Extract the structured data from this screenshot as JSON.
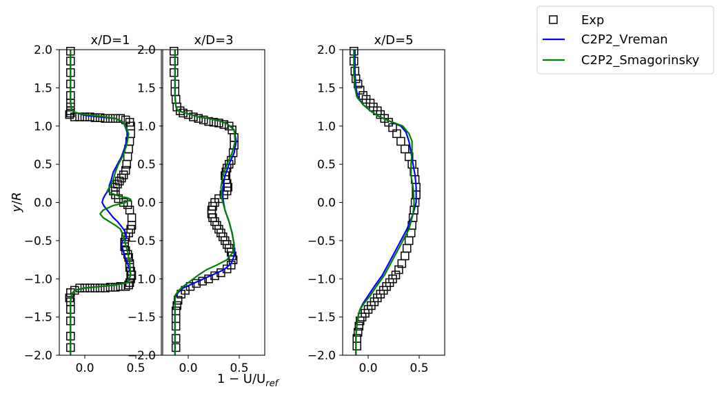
{
  "chart_data": {
    "type": "line",
    "ylabel": "y/R",
    "xlabel": "1 - U/U_ref",
    "xlabel_parts": {
      "main": "1 − U/U",
      "sub": "ref"
    },
    "ylabel_parts": {
      "var": "y",
      "sep": "/",
      "den": "R"
    },
    "xlim": [
      -0.25,
      0.75
    ],
    "ylim": [
      -2.0,
      2.0
    ],
    "xticks": [
      0.0,
      0.5
    ],
    "xtick_labels": [
      "0.0",
      "0.5"
    ],
    "yticks": [
      2.0,
      1.5,
      1.0,
      0.5,
      0.0,
      -0.5,
      -1.0,
      -1.5,
      -2.0
    ],
    "ytick_labels": [
      "2.0",
      "1.5",
      "1.0",
      "0.5",
      "0.0",
      "−0.5",
      "−1.0",
      "−1.5",
      "−2.0"
    ],
    "legend": {
      "location": "upper-right-outside",
      "entries": [
        {
          "name": "Exp",
          "marker": "square",
          "color": "#000000"
        },
        {
          "name": "C2P2_Vreman",
          "marker": "line",
          "color": "#0000ff"
        },
        {
          "name": "C2P2_Smagorinsky",
          "marker": "line",
          "color": "#008000"
        }
      ]
    },
    "panels": [
      {
        "title": "x/D=1",
        "series": [
          {
            "name": "Exp",
            "style": "markers",
            "color": "#000000",
            "x": [
              -0.14,
              -0.14,
              -0.14,
              -0.14,
              -0.14,
              -0.14,
              -0.14,
              -0.14,
              -0.14,
              -0.15,
              -0.1,
              -0.05,
              0.0,
              0.05,
              0.1,
              0.15,
              0.2,
              0.25,
              0.3,
              0.35,
              0.4,
              0.44,
              0.45,
              0.45,
              0.44,
              0.43,
              0.42,
              0.41,
              0.4,
              0.38,
              0.36,
              0.34,
              0.32,
              0.3,
              0.28,
              0.3,
              0.33,
              0.38,
              0.42,
              0.44,
              0.46,
              0.46,
              0.45,
              0.43,
              0.4,
              0.39,
              0.39,
              0.4,
              0.42,
              0.43,
              0.44,
              0.44,
              0.45,
              0.46,
              0.45,
              0.44,
              0.43,
              0.4,
              0.35,
              0.3,
              0.25,
              0.2,
              0.15,
              0.1,
              0.05,
              0.0,
              -0.05,
              -0.1,
              -0.14,
              -0.15,
              -0.14,
              -0.14,
              -0.14,
              -0.14,
              -0.14
            ],
            "y": [
              1.98,
              1.85,
              1.7,
              1.55,
              1.4,
              1.3,
              1.25,
              1.2,
              1.17,
              1.15,
              1.12,
              1.12,
              1.12,
              1.12,
              1.11,
              1.11,
              1.1,
              1.1,
              1.1,
              1.1,
              1.08,
              1.05,
              1.0,
              0.9,
              0.8,
              0.7,
              0.6,
              0.5,
              0.42,
              0.36,
              0.32,
              0.28,
              0.24,
              0.2,
              0.15,
              0.1,
              0.05,
              0.0,
              -0.03,
              -0.1,
              -0.2,
              -0.3,
              -0.35,
              -0.4,
              -0.45,
              -0.52,
              -0.58,
              -0.63,
              -0.68,
              -0.72,
              -0.8,
              -0.85,
              -0.9,
              -0.95,
              -1.0,
              -1.05,
              -1.08,
              -1.1,
              -1.1,
              -1.11,
              -1.11,
              -1.12,
              -1.12,
              -1.12,
              -1.12,
              -1.12,
              -1.12,
              -1.15,
              -1.18,
              -1.25,
              -1.3,
              -1.4,
              -1.55,
              -1.75,
              -1.9
            ]
          },
          {
            "name": "C2P2_Vreman",
            "style": "line",
            "color": "#0000ff",
            "x": [
              -0.14,
              -0.14,
              -0.14,
              -0.13,
              -0.1,
              0.0,
              0.15,
              0.3,
              0.38,
              0.42,
              0.4,
              0.36,
              0.32,
              0.28,
              0.26,
              0.24,
              0.24,
              0.22,
              0.2,
              0.18,
              0.17,
              0.19,
              0.22,
              0.25,
              0.28,
              0.32,
              0.35,
              0.38,
              0.4,
              0.41,
              0.4,
              0.37,
              0.36,
              0.37,
              0.39,
              0.42,
              0.45,
              0.42,
              0.3,
              0.15,
              0.0,
              -0.1,
              -0.13,
              -0.14,
              -0.14,
              -0.14
            ],
            "y": [
              2.0,
              1.6,
              1.3,
              1.22,
              1.18,
              1.14,
              1.12,
              1.1,
              1.05,
              0.9,
              0.75,
              0.6,
              0.5,
              0.4,
              0.3,
              0.22,
              0.18,
              0.14,
              0.1,
              0.05,
              0.0,
              -0.05,
              -0.1,
              -0.15,
              -0.2,
              -0.25,
              -0.3,
              -0.35,
              -0.4,
              -0.45,
              -0.48,
              -0.5,
              -0.55,
              -0.6,
              -0.7,
              -0.8,
              -0.95,
              -1.05,
              -1.08,
              -1.1,
              -1.12,
              -1.15,
              -1.2,
              -1.3,
              -1.6,
              -2.0
            ]
          },
          {
            "name": "C2P2_Smagorinsky",
            "style": "line",
            "color": "#008000",
            "x": [
              -0.14,
              -0.14,
              -0.14,
              -0.13,
              -0.1,
              0.0,
              0.15,
              0.3,
              0.38,
              0.43,
              0.41,
              0.37,
              0.33,
              0.3,
              0.28,
              0.25,
              0.22,
              0.26,
              0.34,
              0.42,
              0.45,
              0.4,
              0.28,
              0.18,
              0.15,
              0.18,
              0.24,
              0.3,
              0.35,
              0.38,
              0.4,
              0.42,
              0.44,
              0.45,
              0.42,
              0.3,
              0.15,
              0.0,
              -0.1,
              -0.13,
              -0.14,
              -0.14,
              -0.14
            ],
            "y": [
              2.0,
              1.6,
              1.3,
              1.22,
              1.18,
              1.15,
              1.13,
              1.1,
              1.05,
              0.9,
              0.75,
              0.6,
              0.5,
              0.4,
              0.3,
              0.22,
              0.15,
              0.12,
              0.08,
              0.06,
              0.04,
              0.0,
              -0.04,
              -0.1,
              -0.15,
              -0.2,
              -0.25,
              -0.3,
              -0.35,
              -0.45,
              -0.55,
              -0.65,
              -0.8,
              -0.95,
              -1.05,
              -1.08,
              -1.1,
              -1.12,
              -1.15,
              -1.2,
              -1.3,
              -1.6,
              -2.0
            ]
          }
        ]
      },
      {
        "title": "x/D=3",
        "series": [
          {
            "name": "Exp",
            "style": "markers",
            "color": "#000000",
            "x": [
              -0.14,
              -0.14,
              -0.14,
              -0.13,
              -0.13,
              -0.12,
              -0.11,
              -0.08,
              -0.05,
              0.0,
              0.05,
              0.1,
              0.15,
              0.2,
              0.25,
              0.3,
              0.35,
              0.4,
              0.43,
              0.45,
              0.45,
              0.44,
              0.42,
              0.4,
              0.38,
              0.37,
              0.36,
              0.37,
              0.38,
              0.39,
              0.38,
              0.35,
              0.3,
              0.26,
              0.24,
              0.23,
              0.23,
              0.24,
              0.26,
              0.28,
              0.3,
              0.32,
              0.34,
              0.36,
              0.38,
              0.4,
              0.42,
              0.43,
              0.44,
              0.42,
              0.38,
              0.32,
              0.26,
              0.2,
              0.14,
              0.08,
              0.02,
              -0.03,
              -0.07,
              -0.1,
              -0.11,
              -0.12,
              -0.12,
              -0.12,
              -0.12,
              -0.12
            ],
            "y": [
              1.98,
              1.85,
              1.7,
              1.55,
              1.45,
              1.35,
              1.25,
              1.2,
              1.17,
              1.15,
              1.12,
              1.1,
              1.08,
              1.06,
              1.05,
              1.04,
              1.02,
              1.0,
              0.95,
              0.85,
              0.75,
              0.65,
              0.55,
              0.5,
              0.45,
              0.4,
              0.35,
              0.3,
              0.25,
              0.2,
              0.15,
              0.1,
              0.05,
              0.0,
              -0.05,
              -0.1,
              -0.15,
              -0.2,
              -0.25,
              -0.3,
              -0.35,
              -0.4,
              -0.45,
              -0.5,
              -0.55,
              -0.6,
              -0.65,
              -0.7,
              -0.75,
              -0.82,
              -0.87,
              -0.92,
              -0.96,
              -1.0,
              -1.03,
              -1.06,
              -1.1,
              -1.15,
              -1.2,
              -1.28,
              -1.35,
              -1.42,
              -1.52,
              -1.62,
              -1.78,
              -1.9
            ]
          },
          {
            "name": "C2P2_Vreman",
            "style": "line",
            "color": "#0000ff",
            "x": [
              -0.13,
              -0.13,
              -0.13,
              -0.12,
              -0.1,
              0.0,
              0.1,
              0.2,
              0.3,
              0.38,
              0.45,
              0.47,
              0.45,
              0.4,
              0.36,
              0.34,
              0.34,
              0.36,
              0.4,
              0.43,
              0.45,
              0.45,
              0.42,
              0.35,
              0.25,
              0.15,
              0.05,
              -0.05,
              -0.1,
              -0.13,
              -0.13,
              -0.13
            ],
            "y": [
              2.0,
              1.6,
              1.4,
              1.25,
              1.2,
              1.16,
              1.12,
              1.1,
              1.07,
              1.03,
              0.95,
              0.8,
              0.65,
              0.5,
              0.35,
              0.2,
              0.05,
              -0.1,
              -0.25,
              -0.4,
              -0.55,
              -0.7,
              -0.8,
              -0.88,
              -0.94,
              -1.0,
              -1.06,
              -1.12,
              -1.18,
              -1.25,
              -1.6,
              -2.0
            ]
          },
          {
            "name": "C2P2_Smagorinsky",
            "style": "line",
            "color": "#008000",
            "x": [
              -0.13,
              -0.13,
              -0.13,
              -0.12,
              -0.1,
              0.0,
              0.1,
              0.2,
              0.3,
              0.38,
              0.45,
              0.46,
              0.43,
              0.38,
              0.34,
              0.32,
              0.33,
              0.36,
              0.4,
              0.43,
              0.45,
              0.44,
              0.38,
              0.28,
              0.18,
              0.1,
              0.03,
              -0.05,
              -0.1,
              -0.13,
              -0.13,
              -0.13
            ],
            "y": [
              2.0,
              1.6,
              1.4,
              1.25,
              1.2,
              1.16,
              1.12,
              1.1,
              1.07,
              1.03,
              0.95,
              0.8,
              0.65,
              0.5,
              0.35,
              0.2,
              0.05,
              -0.1,
              -0.25,
              -0.4,
              -0.55,
              -0.65,
              -0.75,
              -0.82,
              -0.88,
              -0.95,
              -1.02,
              -1.1,
              -1.16,
              -1.22,
              -1.6,
              -2.0
            ]
          }
        ]
      },
      {
        "title": "x/D=5",
        "series": [
          {
            "name": "Exp",
            "style": "markers",
            "color": "#000000",
            "x": [
              -0.14,
              -0.14,
              -0.13,
              -0.12,
              -0.1,
              -0.08,
              -0.05,
              -0.02,
              0.02,
              0.05,
              0.09,
              0.12,
              0.16,
              0.2,
              0.24,
              0.28,
              0.32,
              0.36,
              0.4,
              0.43,
              0.45,
              0.46,
              0.47,
              0.47,
              0.46,
              0.45,
              0.44,
              0.43,
              0.42,
              0.4,
              0.38,
              0.36,
              0.33,
              0.3,
              0.27,
              0.24,
              0.21,
              0.18,
              0.15,
              0.12,
              0.09,
              0.06,
              0.03,
              0.0,
              -0.03,
              -0.06,
              -0.08,
              -0.09,
              -0.1,
              -0.11,
              -0.11
            ],
            "y": [
              1.98,
              1.85,
              1.72,
              1.62,
              1.55,
              1.47,
              1.4,
              1.35,
              1.3,
              1.25,
              1.2,
              1.15,
              1.1,
              1.05,
              0.98,
              0.9,
              0.8,
              0.7,
              0.6,
              0.5,
              0.4,
              0.3,
              0.2,
              0.1,
              0.0,
              -0.1,
              -0.2,
              -0.3,
              -0.4,
              -0.5,
              -0.6,
              -0.7,
              -0.8,
              -0.88,
              -0.95,
              -1.0,
              -1.05,
              -1.1,
              -1.15,
              -1.2,
              -1.25,
              -1.3,
              -1.35,
              -1.4,
              -1.45,
              -1.5,
              -1.55,
              -1.62,
              -1.7,
              -1.78,
              -1.88
            ]
          },
          {
            "name": "C2P2_Vreman",
            "style": "line",
            "color": "#0000ff",
            "x": [
              -0.13,
              -0.13,
              -0.12,
              -0.1,
              -0.05,
              0.02,
              0.1,
              0.18,
              0.25,
              0.32,
              0.37,
              0.4,
              0.42,
              0.44,
              0.46,
              0.47,
              0.47,
              0.44,
              0.38,
              0.3,
              0.22,
              0.14,
              0.06,
              0.0,
              -0.05,
              -0.08,
              -0.1,
              -0.11,
              -0.12,
              -0.12
            ],
            "y": [
              2.0,
              1.7,
              1.5,
              1.38,
              1.28,
              1.2,
              1.13,
              1.08,
              1.04,
              1.0,
              0.92,
              0.8,
              0.65,
              0.5,
              0.35,
              0.2,
              0.0,
              -0.15,
              -0.35,
              -0.55,
              -0.75,
              -0.95,
              -1.1,
              -1.22,
              -1.32,
              -1.4,
              -1.5,
              -1.6,
              -1.75,
              -2.0
            ]
          },
          {
            "name": "C2P2_Smagorinsky",
            "style": "line",
            "color": "#008000",
            "x": [
              -0.14,
              -0.14,
              -0.13,
              -0.11,
              -0.05,
              0.02,
              0.1,
              0.18,
              0.26,
              0.34,
              0.4,
              0.43,
              0.43,
              0.42,
              0.42,
              0.44,
              0.45,
              0.44,
              0.4,
              0.32,
              0.24,
              0.16,
              0.08,
              0.02,
              -0.04,
              -0.08,
              -0.1,
              -0.11,
              -0.12,
              -0.12
            ],
            "y": [
              2.0,
              1.7,
              1.5,
              1.38,
              1.28,
              1.2,
              1.13,
              1.08,
              1.04,
              1.0,
              0.9,
              0.8,
              0.65,
              0.5,
              0.35,
              0.2,
              0.0,
              -0.15,
              -0.35,
              -0.55,
              -0.75,
              -0.95,
              -1.1,
              -1.22,
              -1.32,
              -1.4,
              -1.5,
              -1.6,
              -1.75,
              -2.0
            ]
          }
        ]
      }
    ]
  }
}
